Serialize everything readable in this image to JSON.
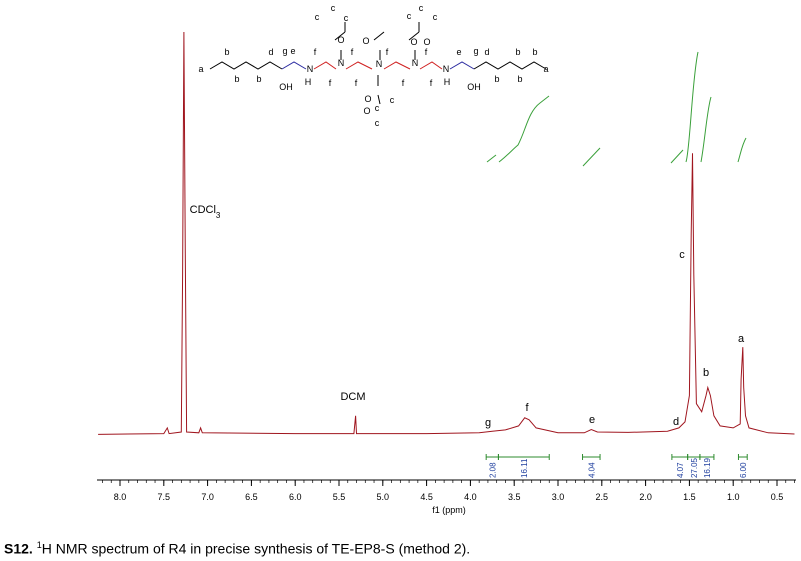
{
  "chart_data": {
    "type": "line",
    "title": "",
    "xlabel": "f1 (ppm)",
    "xlim": [
      8.25,
      0.3
    ],
    "x_reversed": true,
    "xticks": [
      "8.0",
      "7.5",
      "7.0",
      "6.5",
      "6.0",
      "5.5",
      "5.0",
      "4.5",
      "4.0",
      "3.5",
      "3.0",
      "2.5",
      "2.0",
      "1.5",
      "1.0",
      "0.5"
    ],
    "series": [
      {
        "points": [
          [
            8.25,
            0.004
          ],
          [
            7.5,
            0.006
          ],
          [
            7.46,
            0.02
          ],
          [
            7.44,
            0.006
          ],
          [
            7.3,
            0.01
          ],
          [
            7.285,
            0.4
          ],
          [
            7.27,
            1.0
          ],
          [
            7.255,
            0.45
          ],
          [
            7.24,
            0.01
          ],
          [
            7.1,
            0.008
          ],
          [
            7.08,
            0.02
          ],
          [
            7.06,
            0.008
          ],
          [
            6.0,
            0.006
          ],
          [
            5.33,
            0.006
          ],
          [
            5.31,
            0.05
          ],
          [
            5.3,
            0.006
          ],
          [
            4.5,
            0.006
          ],
          [
            3.9,
            0.008
          ],
          [
            3.75,
            0.012
          ],
          [
            3.6,
            0.015
          ],
          [
            3.45,
            0.025
          ],
          [
            3.38,
            0.045
          ],
          [
            3.33,
            0.04
          ],
          [
            3.25,
            0.02
          ],
          [
            3.0,
            0.008
          ],
          [
            2.7,
            0.008
          ],
          [
            2.62,
            0.016
          ],
          [
            2.55,
            0.01
          ],
          [
            2.2,
            0.009
          ],
          [
            1.75,
            0.012
          ],
          [
            1.62,
            0.02
          ],
          [
            1.55,
            0.035
          ],
          [
            1.5,
            0.1
          ],
          [
            1.48,
            0.5
          ],
          [
            1.465,
            0.7
          ],
          [
            1.45,
            0.4
          ],
          [
            1.42,
            0.08
          ],
          [
            1.36,
            0.06
          ],
          [
            1.31,
            0.1
          ],
          [
            1.29,
            0.12
          ],
          [
            1.26,
            0.1
          ],
          [
            1.22,
            0.05
          ],
          [
            1.15,
            0.025
          ],
          [
            1.0,
            0.02
          ],
          [
            0.92,
            0.03
          ],
          [
            0.91,
            0.14
          ],
          [
            0.89,
            0.22
          ],
          [
            0.88,
            0.12
          ],
          [
            0.86,
            0.05
          ],
          [
            0.82,
            0.02
          ],
          [
            0.6,
            0.008
          ],
          [
            0.3,
            0.005
          ]
        ]
      }
    ],
    "peak_labels": [
      {
        "text": "CDCl",
        "sub": "3",
        "x": 7.26,
        "y": 0.82
      },
      {
        "text": "DCM",
        "x": 5.31,
        "y": 0.12
      },
      {
        "text": "g",
        "x": 3.75,
        "y": 0.04
      },
      {
        "text": "f",
        "x": 3.38,
        "y": 0.08
      },
      {
        "text": "e",
        "x": 2.62,
        "y": 0.05
      },
      {
        "text": "d",
        "x": 1.62,
        "y": 0.04
      },
      {
        "text": "c",
        "x": 1.48,
        "y": 0.7
      },
      {
        "text": "b",
        "x": 1.29,
        "y": 0.2
      },
      {
        "text": "a",
        "x": 0.89,
        "y": 0.32
      }
    ],
    "integrals": [
      {
        "from": 3.82,
        "to": 3.68,
        "value": "2.08"
      },
      {
        "from": 3.68,
        "to": 3.1,
        "value": "16.11"
      },
      {
        "from": 2.72,
        "to": 2.52,
        "value": "4.04"
      },
      {
        "from": 1.7,
        "to": 1.52,
        "value": "4.07"
      },
      {
        "from": 1.52,
        "to": 1.38,
        "value": "27.05"
      },
      {
        "from": 1.38,
        "to": 1.22,
        "value": "16.19"
      },
      {
        "from": 0.94,
        "to": 0.84,
        "value": "6.00"
      }
    ]
  },
  "molecule": {
    "atoms": [
      "a",
      "b",
      "b",
      "b",
      "d",
      "g",
      "OH",
      "e",
      "N",
      "H",
      "f",
      "f",
      "N",
      "f",
      "f",
      "N",
      "f",
      "f",
      "N",
      "f",
      "f",
      "N",
      "H",
      "e",
      "OH",
      "g",
      "d",
      "b",
      "b",
      "b",
      "b",
      "a",
      "O",
      "O",
      "O",
      "O",
      "O",
      "O",
      "c",
      "c",
      "c",
      "c",
      "c",
      "c",
      "c",
      "c",
      "c"
    ]
  },
  "caption": {
    "label": "S12.",
    "sup": "1",
    "text": "H NMR spectrum of R4 in precise synthesis of TE-EP8-S (method 2)."
  }
}
